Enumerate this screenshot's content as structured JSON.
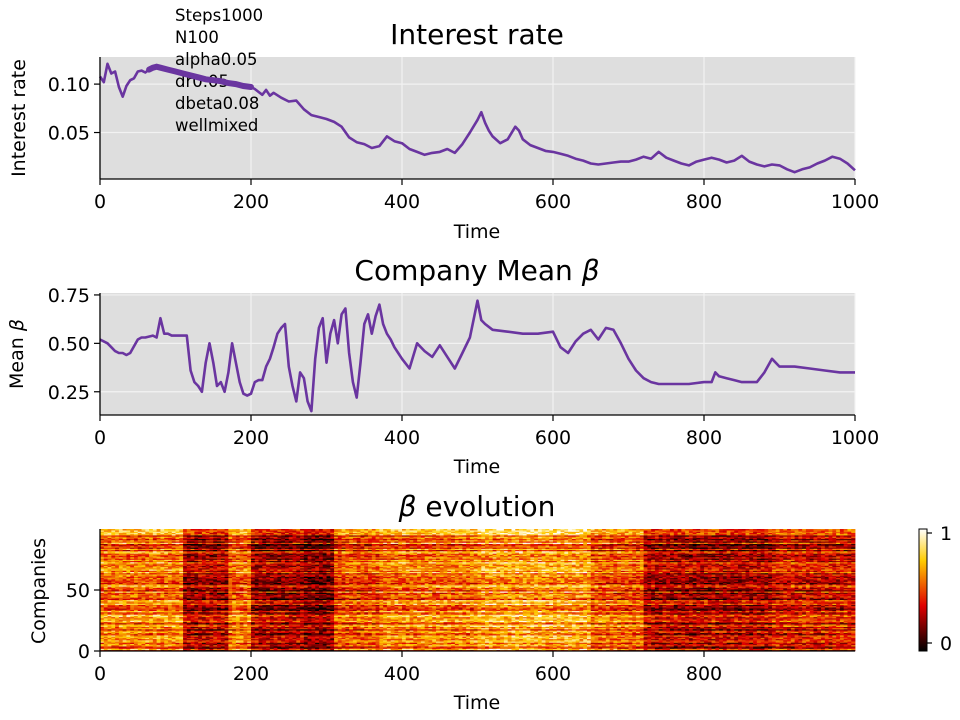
{
  "params_annotation": [
    "Steps1000",
    "N100",
    "alpha0.05",
    "dr0.05",
    "dbeta0.08",
    "wellmixed"
  ],
  "colors": {
    "line": "#6a35a0",
    "panel_bg": "#dedede",
    "grid": "#f2f2f2",
    "colormap": "hot"
  },
  "chart_data": [
    {
      "type": "line",
      "title": "Interest rate",
      "xlabel": "Time",
      "ylabel": "Interest rate",
      "xlim": [
        0,
        1000
      ],
      "ylim": [
        0.002,
        0.128
      ],
      "xticks": [
        0,
        200,
        400,
        600,
        800,
        1000
      ],
      "xticklabels": [
        "0",
        "200",
        "400",
        "600",
        "800",
        "1000"
      ],
      "yticks": [
        0.05,
        0.1
      ],
      "yticklabels": [
        "0.05",
        "0.10"
      ],
      "grid": true,
      "series": [
        {
          "x": [
            0,
            5,
            10,
            15,
            20,
            25,
            30,
            35,
            40,
            45,
            50,
            55,
            60,
            65,
            70,
            75,
            80,
            90,
            100,
            110,
            120,
            130,
            140,
            150,
            160,
            170,
            180,
            190,
            200,
            205,
            210,
            215,
            220,
            225,
            230,
            240,
            250,
            260,
            270,
            280,
            290,
            300,
            310,
            320,
            330,
            340,
            350,
            360,
            370,
            380,
            390,
            400,
            410,
            420,
            430,
            440,
            450,
            460,
            470,
            480,
            490,
            500,
            505,
            510,
            515,
            520,
            530,
            540,
            550,
            555,
            560,
            570,
            580,
            590,
            600,
            610,
            620,
            630,
            640,
            650,
            660,
            670,
            680,
            690,
            700,
            710,
            720,
            730,
            740,
            750,
            760,
            770,
            780,
            790,
            800,
            810,
            820,
            830,
            840,
            850,
            860,
            870,
            880,
            890,
            900,
            910,
            920,
            930,
            940,
            950,
            960,
            970,
            980,
            990,
            1000
          ],
          "y": [
            0.108,
            0.102,
            0.121,
            0.111,
            0.113,
            0.097,
            0.087,
            0.098,
            0.104,
            0.106,
            0.113,
            0.114,
            0.112,
            0.115,
            0.117,
            0.118,
            0.117,
            0.115,
            0.113,
            0.111,
            0.109,
            0.107,
            0.105,
            0.104,
            0.103,
            0.101,
            0.1,
            0.098,
            0.097,
            0.095,
            0.092,
            0.089,
            0.094,
            0.088,
            0.091,
            0.086,
            0.082,
            0.083,
            0.074,
            0.068,
            0.066,
            0.064,
            0.061,
            0.056,
            0.045,
            0.04,
            0.038,
            0.034,
            0.036,
            0.046,
            0.041,
            0.039,
            0.033,
            0.03,
            0.027,
            0.029,
            0.03,
            0.033,
            0.029,
            0.038,
            0.05,
            0.063,
            0.071,
            0.06,
            0.052,
            0.046,
            0.039,
            0.043,
            0.056,
            0.052,
            0.043,
            0.037,
            0.034,
            0.031,
            0.03,
            0.028,
            0.026,
            0.023,
            0.021,
            0.018,
            0.017,
            0.018,
            0.019,
            0.02,
            0.02,
            0.022,
            0.025,
            0.023,
            0.03,
            0.024,
            0.021,
            0.018,
            0.016,
            0.02,
            0.022,
            0.024,
            0.022,
            0.019,
            0.021,
            0.026,
            0.02,
            0.017,
            0.015,
            0.017,
            0.016,
            0.012,
            0.009,
            0.012,
            0.014,
            0.018,
            0.021,
            0.025,
            0.023,
            0.018,
            0.011
          ]
        }
      ]
    },
    {
      "type": "line",
      "title": "Company Mean β",
      "xlabel": "Time",
      "ylabel": "Mean β",
      "xlim": [
        0,
        1000
      ],
      "ylim": [
        0.13,
        0.76
      ],
      "xticks": [
        0,
        200,
        400,
        600,
        800,
        1000
      ],
      "xticklabels": [
        "0",
        "200",
        "400",
        "600",
        "800",
        "1000"
      ],
      "yticks": [
        0.25,
        0.5,
        0.75
      ],
      "yticklabels": [
        "0.25",
        "0.50",
        "0.75"
      ],
      "grid": true,
      "series": [
        {
          "x": [
            0,
            5,
            10,
            15,
            20,
            25,
            30,
            35,
            40,
            50,
            55,
            60,
            70,
            75,
            80,
            85,
            90,
            95,
            100,
            105,
            110,
            115,
            120,
            125,
            130,
            135,
            140,
            145,
            150,
            155,
            160,
            165,
            170,
            175,
            180,
            185,
            190,
            195,
            200,
            205,
            210,
            215,
            220,
            225,
            230,
            235,
            240,
            245,
            250,
            255,
            260,
            265,
            270,
            275,
            280,
            285,
            290,
            295,
            300,
            305,
            310,
            315,
            320,
            325,
            330,
            335,
            340,
            345,
            350,
            355,
            360,
            365,
            370,
            375,
            380,
            385,
            390,
            395,
            400,
            410,
            420,
            430,
            440,
            450,
            460,
            470,
            480,
            490,
            500,
            505,
            510,
            520,
            540,
            560,
            580,
            600,
            610,
            620,
            630,
            640,
            650,
            660,
            670,
            680,
            690,
            700,
            710,
            720,
            730,
            740,
            760,
            780,
            800,
            810,
            815,
            820,
            830,
            840,
            850,
            860,
            870,
            880,
            890,
            900,
            920,
            940,
            960,
            980,
            1000
          ],
          "y": [
            0.52,
            0.51,
            0.5,
            0.48,
            0.46,
            0.45,
            0.45,
            0.44,
            0.45,
            0.52,
            0.53,
            0.53,
            0.54,
            0.53,
            0.63,
            0.55,
            0.55,
            0.54,
            0.54,
            0.54,
            0.54,
            0.54,
            0.36,
            0.3,
            0.28,
            0.25,
            0.4,
            0.5,
            0.4,
            0.28,
            0.3,
            0.25,
            0.35,
            0.5,
            0.4,
            0.3,
            0.24,
            0.23,
            0.24,
            0.3,
            0.31,
            0.31,
            0.38,
            0.42,
            0.48,
            0.55,
            0.58,
            0.6,
            0.38,
            0.28,
            0.2,
            0.35,
            0.32,
            0.2,
            0.15,
            0.42,
            0.58,
            0.63,
            0.4,
            0.55,
            0.62,
            0.5,
            0.65,
            0.68,
            0.45,
            0.3,
            0.22,
            0.4,
            0.6,
            0.65,
            0.55,
            0.64,
            0.7,
            0.6,
            0.55,
            0.52,
            0.48,
            0.45,
            0.42,
            0.37,
            0.5,
            0.46,
            0.43,
            0.49,
            0.43,
            0.37,
            0.45,
            0.53,
            0.72,
            0.62,
            0.6,
            0.57,
            0.56,
            0.55,
            0.55,
            0.56,
            0.48,
            0.45,
            0.51,
            0.55,
            0.57,
            0.52,
            0.58,
            0.57,
            0.5,
            0.42,
            0.36,
            0.32,
            0.3,
            0.29,
            0.29,
            0.29,
            0.3,
            0.3,
            0.35,
            0.33,
            0.32,
            0.31,
            0.3,
            0.3,
            0.3,
            0.35,
            0.42,
            0.38,
            0.38,
            0.37,
            0.36,
            0.35,
            0.35
          ]
        }
      ]
    },
    {
      "type": "heatmap",
      "title": "β evolution",
      "xlabel": "Time",
      "ylabel": "Companies",
      "xlim": [
        0,
        1000
      ],
      "ylim": [
        0,
        100
      ],
      "xticks": [
        0,
        200,
        400,
        600,
        800
      ],
      "xticklabels": [
        "0",
        "200",
        "400",
        "600",
        "800"
      ],
      "yticks": [
        0,
        50
      ],
      "yticklabels": [
        "0",
        "50"
      ],
      "colorbar": {
        "ticks": [
          0,
          1
        ],
        "ticklabels": [
          "0",
          "1"
        ],
        "cmap": "hot"
      },
      "rows": 100,
      "time_segments": [
        {
          "start": 0,
          "end": 110,
          "mean_value": 0.58
        },
        {
          "start": 110,
          "end": 170,
          "mean_value": 0.3
        },
        {
          "start": 170,
          "end": 200,
          "mean_value": 0.55
        },
        {
          "start": 200,
          "end": 270,
          "mean_value": 0.28
        },
        {
          "start": 270,
          "end": 310,
          "mean_value": 0.22
        },
        {
          "start": 310,
          "end": 370,
          "mean_value": 0.5
        },
        {
          "start": 370,
          "end": 500,
          "mean_value": 0.58
        },
        {
          "start": 500,
          "end": 650,
          "mean_value": 0.66
        },
        {
          "start": 650,
          "end": 720,
          "mean_value": 0.52
        },
        {
          "start": 720,
          "end": 890,
          "mean_value": 0.3
        },
        {
          "start": 890,
          "end": 1000,
          "mean_value": 0.38
        }
      ]
    }
  ]
}
